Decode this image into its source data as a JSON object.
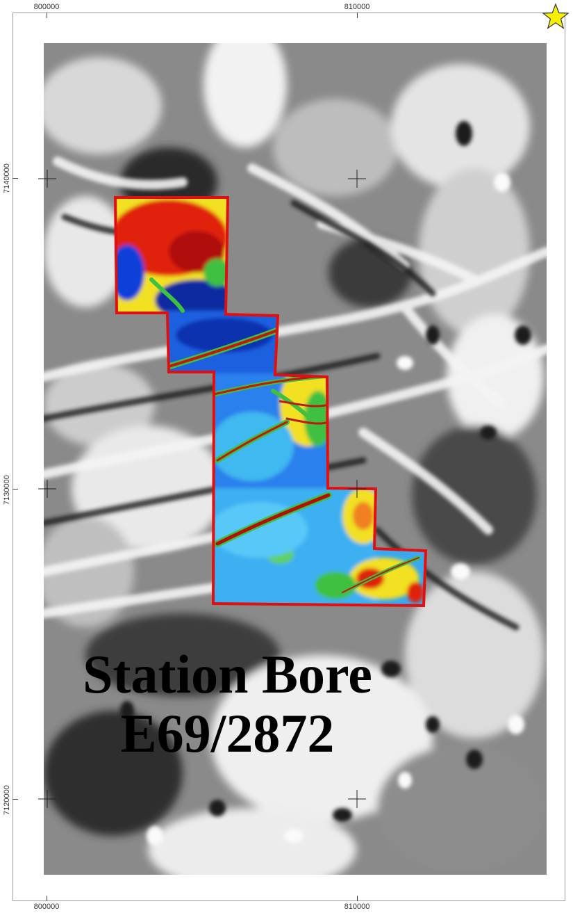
{
  "map": {
    "title_line1": "Station Bore",
    "title_line2": "E69/2872",
    "easting_labels": {
      "e800000": "800000",
      "e810000": "810000"
    },
    "northing_labels": {
      "n7140000": "7140000",
      "n7130000": "7130000",
      "n7120000": "7120000"
    },
    "background_style": "grayscale magnetic intensity",
    "survey_overlay_style": "rainbow colour magnetic intensity",
    "tenement_outline_color": "#e01010",
    "north_marker": "star-icon",
    "colors": {
      "high": "#e02010",
      "mid": "#f2e020",
      "low": "#1050e0",
      "lowest": "#40b8f0",
      "outline": "#e01010",
      "star": "#f8f000"
    }
  }
}
